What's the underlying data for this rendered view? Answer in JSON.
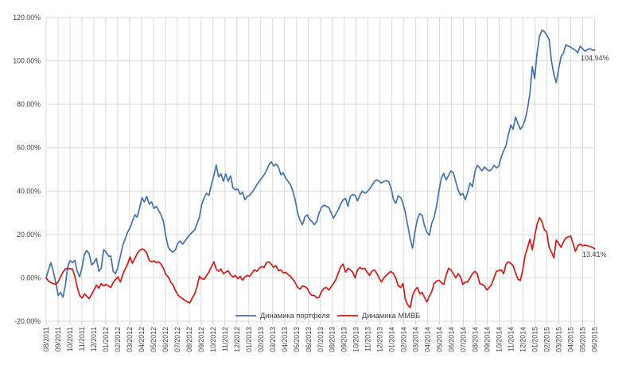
{
  "chart_data": {
    "type": "line",
    "title": "",
    "xlabel": "",
    "ylabel": "",
    "ylim": [
      -20,
      120
    ],
    "grid": true,
    "grid_color": "#d9d9d9",
    "tick_color": "#c9c9c9",
    "axis_text_color": "#3f3f3f",
    "legend_position": "bottom-center",
    "y_ticks": [
      120,
      100,
      80,
      60,
      40,
      20,
      0,
      -20
    ],
    "y_tick_labels": [
      "120.00%",
      "100.00%",
      "80.00%",
      "60.00%",
      "40.00%",
      "20.00%",
      "0.00%",
      "-20.00%"
    ],
    "x_tick_labels": [
      "08/2011",
      "09/2011",
      "10/2011",
      "11/2011",
      "12/2011",
      "01/2012",
      "02/2012",
      "03/2012",
      "04/2012",
      "05/2012",
      "06/2012",
      "07/2012",
      "08/2012",
      "09/2012",
      "10/2012",
      "11/2012",
      "12/2012",
      "01/2013",
      "02/2013",
      "03/2013",
      "04/2013",
      "05/2013",
      "06/2013",
      "07/2013",
      "08/2013",
      "09/2013",
      "10/2013",
      "11/2013",
      "12/2013",
      "01/2014",
      "02/2014",
      "03/2014",
      "04/2014",
      "05/2014",
      "06/2014",
      "07/2014",
      "08/2014",
      "09/2014",
      "10/2014",
      "11/2014",
      "12/2014",
      "01/2015",
      "02/2015",
      "03/2015",
      "04/2015",
      "05/2015",
      "06/2015"
    ],
    "series": [
      {
        "name": "Динамика портфеля",
        "color": "#4271ae",
        "end_label": "104.94%",
        "values": [
          0,
          3.7,
          7,
          3,
          -1.9,
          -8.1,
          -6.7,
          -8.9,
          -3.7,
          5,
          8,
          7,
          8.1,
          3,
          0.5,
          5,
          11,
          12.6,
          11,
          6,
          7,
          9,
          3,
          4.4,
          13,
          12,
          10,
          10,
          3,
          2,
          5,
          10,
          15,
          18,
          21,
          23,
          26,
          29,
          28,
          32,
          37,
          35,
          37.5,
          34,
          35,
          32,
          33,
          31,
          29,
          26,
          19,
          14,
          12.5,
          11.9,
          13,
          16,
          17,
          15.5,
          17,
          18.5,
          20,
          21,
          22,
          25,
          28,
          34,
          37,
          39,
          38,
          43,
          47,
          52,
          46.5,
          48,
          44.5,
          48,
          44.5,
          47,
          41.5,
          40.5,
          41,
          38.5,
          39.5,
          36,
          37.5,
          38,
          39.5,
          41,
          43,
          44.5,
          46,
          47.5,
          49.5,
          52,
          53.5,
          51.5,
          52.5,
          51,
          47.5,
          48.5,
          46,
          44.5,
          43,
          40,
          36,
          30,
          26.5,
          24.5,
          28,
          29,
          27,
          26,
          24.5,
          26,
          30,
          32.5,
          33.5,
          33,
          32.5,
          30,
          27.5,
          29.5,
          31.5,
          34,
          36,
          36.5,
          33,
          37.5,
          38.5,
          38,
          35.5,
          38,
          40,
          39,
          39.6,
          41,
          42.5,
          44.4,
          45.2,
          44.5,
          43.7,
          44.5,
          44.8,
          44.4,
          41.5,
          36.3,
          34.4,
          37.8,
          37,
          34.4,
          30,
          24,
          18,
          13.7,
          21.5,
          27,
          29.6,
          28.9,
          24,
          21,
          19.6,
          25.2,
          28,
          33,
          40,
          46,
          48.1,
          45.2,
          47,
          49.3,
          48.5,
          44.4,
          40.5,
          38.1,
          38.9,
          36,
          39.5,
          43.7,
          42,
          48.9,
          51.9,
          50.7,
          49.3,
          51.1,
          50,
          49.3,
          50,
          51.9,
          50.7,
          51.5,
          55.6,
          58.5,
          61,
          66,
          70.4,
          68.5,
          74.1,
          71,
          68.5,
          70,
          73,
          78,
          85,
          97.4,
          91.9,
          103.7,
          111.1,
          114.2,
          113.5,
          111.8,
          110,
          100,
          93.7,
          90,
          96.3,
          101.9,
          103.7,
          107.4,
          106.8,
          106.3,
          105.6,
          104.9,
          103.7,
          106.8,
          105.6,
          104.5,
          105.2,
          105.6,
          105,
          104.94
        ]
      },
      {
        "name": "Динамика ММВБ",
        "color": "#d41715",
        "end_label": "13.41%",
        "values": [
          0,
          -1.5,
          -2.2,
          -2.6,
          -3,
          -1.9,
          0.5,
          2.6,
          4.1,
          4.4,
          4.2,
          4.1,
          0.7,
          -4.4,
          -8.1,
          -9.3,
          -7.4,
          -8.5,
          -9.6,
          -7.5,
          -5.6,
          -3.3,
          -4.8,
          -2.6,
          -3.7,
          -3,
          -3.7,
          -4.4,
          -2.2,
          -0.7,
          0.4,
          -1.9,
          1.5,
          4.1,
          6.3,
          9.6,
          6.7,
          8.9,
          11.1,
          12.6,
          13.3,
          13,
          11.5,
          8.1,
          7.4,
          7.8,
          7,
          7.4,
          6.3,
          4.4,
          1.5,
          0.4,
          -1.9,
          -3.3,
          -5.9,
          -7.8,
          -8.9,
          -9.6,
          -10.4,
          -11.1,
          -11.5,
          -9.3,
          -7.4,
          -4.1,
          0.7,
          -0.4,
          -0.7,
          1.1,
          2.6,
          5.2,
          7.4,
          4.1,
          3,
          4.1,
          1.9,
          2.6,
          3.3,
          1.5,
          0.4,
          1.1,
          -0.4,
          0.7,
          -1.1,
          0.4,
          1.1,
          0.7,
          2.2,
          3.7,
          3,
          4.4,
          5.2,
          4.8,
          7,
          7.4,
          6.3,
          4.8,
          5.6,
          3.3,
          3.7,
          2.2,
          2.6,
          1.5,
          0.7,
          -0.7,
          -2.2,
          -4.4,
          -5.2,
          -3.7,
          -4.1,
          -4.8,
          -7,
          -8.1,
          -8.1,
          -9.3,
          -8.9,
          -6.3,
          -4.8,
          -4.4,
          -5.6,
          -4.1,
          -2.6,
          -0.7,
          2.2,
          5.2,
          6.3,
          2.6,
          4.4,
          3.7,
          2.6,
          0,
          3.7,
          4.8,
          4.1,
          4.4,
          2.6,
          1.1,
          3,
          3.7,
          2.2,
          0,
          -1.9,
          0,
          1.1,
          2.2,
          3,
          1.9,
          0,
          -3.7,
          -4.4,
          -2.6,
          -10,
          -12.5,
          -13.7,
          -8,
          -5.6,
          -4.4,
          -7.4,
          -6.7,
          -9,
          -11.1,
          -8.5,
          -6.3,
          -2.6,
          -1.5,
          -1.1,
          -2.2,
          -3,
          1.1,
          4.4,
          3.7,
          1.9,
          0,
          1.9,
          0.4,
          -3,
          -1.9,
          -1.9,
          0,
          1.9,
          3,
          1.9,
          -2.6,
          -3,
          -3.7,
          -5.6,
          -4.4,
          -3,
          0,
          3,
          3.3,
          3.7,
          1.9,
          6.3,
          7.4,
          6.7,
          5.6,
          2.2,
          -0.7,
          -1.1,
          3.7,
          10.4,
          14,
          17.8,
          13,
          19.3,
          24.8,
          27.8,
          25.9,
          22.2,
          21.1,
          14.1,
          11.9,
          9.3,
          17.4,
          15.9,
          14.1,
          16.7,
          18.5,
          18.9,
          19.3,
          15.9,
          12.2,
          14.8,
          15.6,
          14.8,
          15.2,
          14.8,
          14.5,
          14.1,
          13.41
        ]
      }
    ]
  }
}
